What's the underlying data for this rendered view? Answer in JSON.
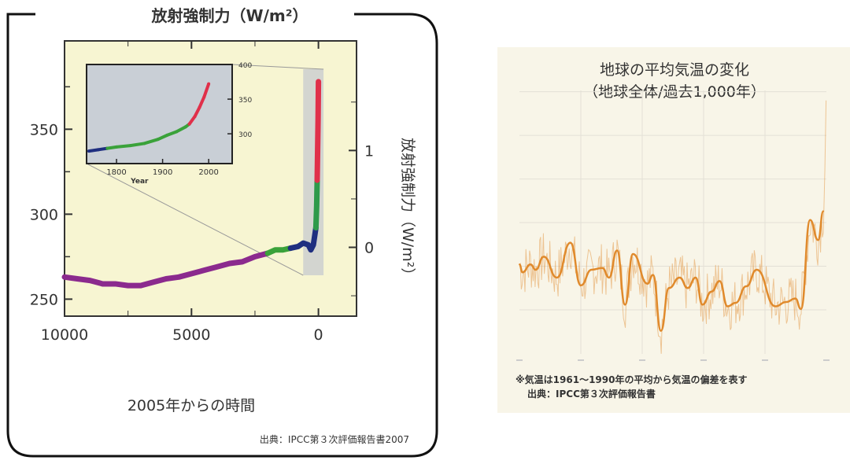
{
  "chart_data": [
    {
      "type": "line",
      "title": "放射強制力（W/m²）",
      "xlabel": "2005年からの時間",
      "ylabel_right": "放射強制力（W/m²）",
      "source": "出典：IPCC第３次評価報告書2007",
      "xlim": [
        10000,
        -1500
      ],
      "ylim": [
        240,
        402
      ],
      "x_ticks": [
        {
          "v": 10000,
          "label": "10000"
        },
        {
          "v": 5000,
          "label": "5000"
        },
        {
          "v": 0,
          "label": "0"
        }
      ],
      "y_ticks": [
        {
          "v": 350,
          "label": "350"
        },
        {
          "v": 300,
          "label": "300"
        },
        {
          "v": 250,
          "label": "250"
        }
      ],
      "y2_ticks": [
        {
          "v": 1,
          "label": "1"
        },
        {
          "v": 0,
          "label": "0"
        }
      ],
      "background": "#f7f5d2",
      "series": [
        {
          "color": "#8b2a8e",
          "x": [
            10000,
            9500,
            9000,
            8500,
            8000,
            7500,
            7000,
            6500,
            6000,
            5500,
            5000,
            4500,
            4000,
            3500,
            3000,
            2500,
            2000
          ],
          "y": [
            263,
            262,
            261,
            259,
            259,
            258,
            258,
            260,
            262,
            263,
            265,
            267,
            269,
            271,
            272,
            275,
            277
          ]
        },
        {
          "color": "#3aa23a",
          "x": [
            2000,
            1700,
            1400,
            1100
          ],
          "y": [
            277,
            279,
            279,
            280
          ]
        },
        {
          "color": "#1f2f80",
          "x": [
            1100,
            800,
            600,
            400,
            300,
            200,
            150,
            100
          ],
          "y": [
            280,
            281,
            283,
            282,
            279,
            282,
            287,
            292
          ]
        },
        {
          "color": "#2e9a4a",
          "x": [
            100,
            70,
            50
          ],
          "y": [
            292,
            305,
            320
          ]
        },
        {
          "color": "#e0304a",
          "x": [
            50,
            30,
            15,
            5,
            0
          ],
          "y": [
            320,
            340,
            355,
            370,
            378
          ]
        }
      ],
      "inset": {
        "xlabel": "Year",
        "xlim": [
          1735,
          2051
        ],
        "ylim": [
          257,
          400
        ],
        "background": "#c9cfd6",
        "x_ticks": [
          {
            "v": 1800,
            "label": "1800"
          },
          {
            "v": 1900,
            "label": "1900"
          },
          {
            "v": 2000,
            "label": "2000"
          }
        ],
        "y_ticks": [
          {
            "v": 400,
            "label": "400"
          },
          {
            "v": 350,
            "label": "350"
          },
          {
            "v": 300,
            "label": "300"
          }
        ],
        "series": [
          {
            "color": "#1f2f80",
            "x": [
              1740,
              1760,
              1780
            ],
            "y": [
              275,
              277,
              279
            ]
          },
          {
            "color": "#3aa23a",
            "x": [
              1780,
              1800,
              1830,
              1860,
              1890,
              1910,
              1930,
              1950,
              1958
            ],
            "y": [
              279,
              281,
              283,
              286,
              292,
              298,
              303,
              310,
              314
            ]
          },
          {
            "color": "#e0304a",
            "x": [
              1958,
              1970,
              1980,
              1990,
              2000
            ],
            "y": [
              314,
              325,
              338,
              353,
              372
            ]
          }
        ]
      }
    },
    {
      "type": "line",
      "title": "地球の平均気温の変化",
      "subtitle": "（地球全体/過去1,000年）",
      "note": "※気温は1961～1990年の平均から気温の偏差を表す",
      "source": "出典：IPCC第３次評価報告書",
      "xlim": [
        1000,
        2000
      ],
      "ylim": [
        -1.55,
        1.65
      ],
      "grid": true,
      "color": "#e08a2c",
      "series": [
        {
          "x": [
            1000,
            1010,
            1036,
            1053,
            1079,
            1122,
            1166,
            1200,
            1235,
            1270,
            1292,
            1318,
            1344,
            1370,
            1417,
            1435,
            1461,
            1487,
            1522,
            1548,
            1574,
            1596,
            1626,
            1652,
            1678,
            1704,
            1739,
            1773,
            1834,
            1869,
            1899,
            1917,
            1947,
            1973,
            1990
          ],
          "y": [
            -0.48,
            -0.57,
            -0.48,
            -0.54,
            -0.39,
            -0.63,
            -0.23,
            -0.72,
            -0.54,
            -0.52,
            -0.63,
            -0.32,
            -0.94,
            -0.36,
            -0.7,
            -0.6,
            -1.24,
            -0.75,
            -0.63,
            -0.75,
            -0.63,
            -0.94,
            -0.79,
            -0.67,
            -0.96,
            -0.92,
            -0.73,
            -0.54,
            -0.96,
            -0.91,
            -0.87,
            -0.99,
            0.03,
            -0.2,
            0.13
          ]
        }
      ]
    }
  ]
}
